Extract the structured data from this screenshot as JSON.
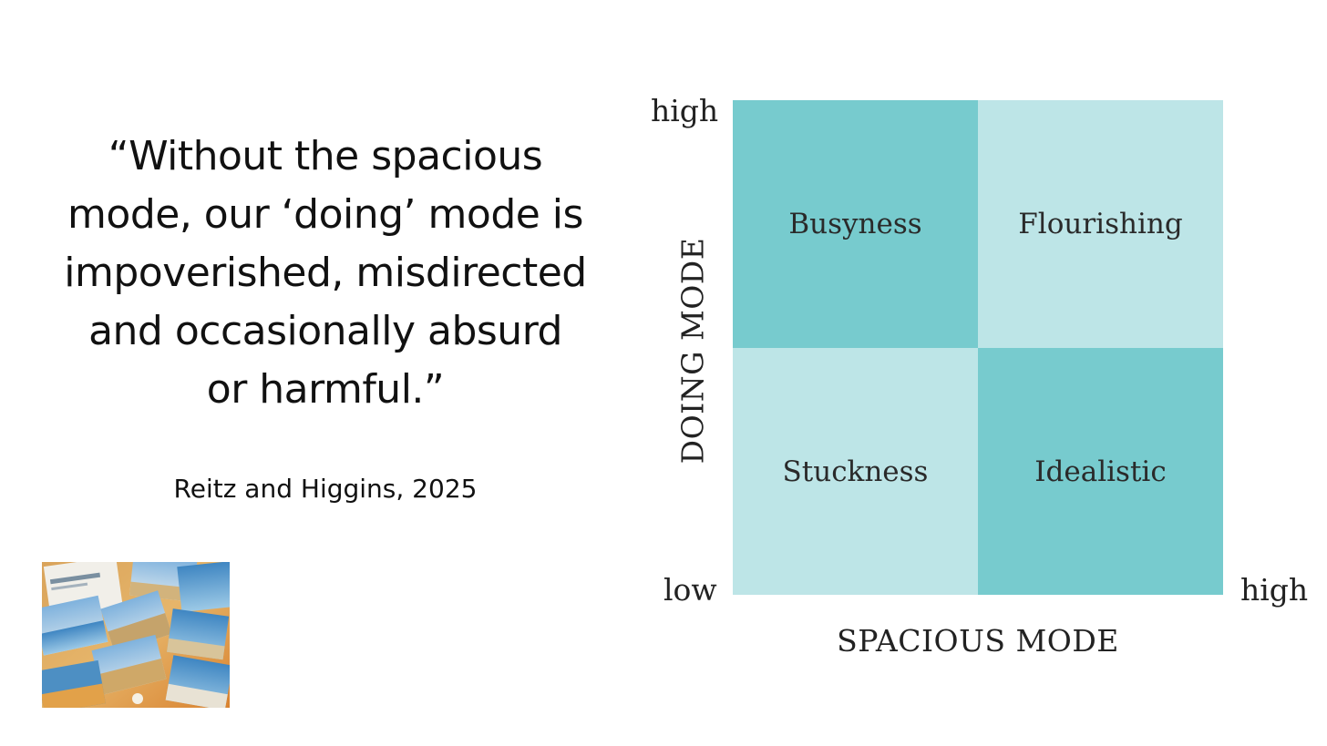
{
  "quote": {
    "text": "“Without the spacious\nmode, our ‘doing’ mode is\nimpoverished, misdirected\nand occasionally absurd\nor harmful.”",
    "attribution": "Reitz and Higgins, 2025"
  },
  "photo": {
    "description_icon": "collage-of-cards-icon"
  },
  "matrix": {
    "quadrants": {
      "top_left": "Busyness",
      "top_right": "Flourishing",
      "bottom_left": "Stuckness",
      "bottom_right": "Idealistic"
    },
    "y_axis": {
      "label": "DOING MODE",
      "high": "high",
      "low": "low"
    },
    "x_axis": {
      "label": "SPACIOUS MODE",
      "high": "high"
    },
    "colors": {
      "dark": "#77cbce",
      "light": "#bde5e7"
    }
  }
}
